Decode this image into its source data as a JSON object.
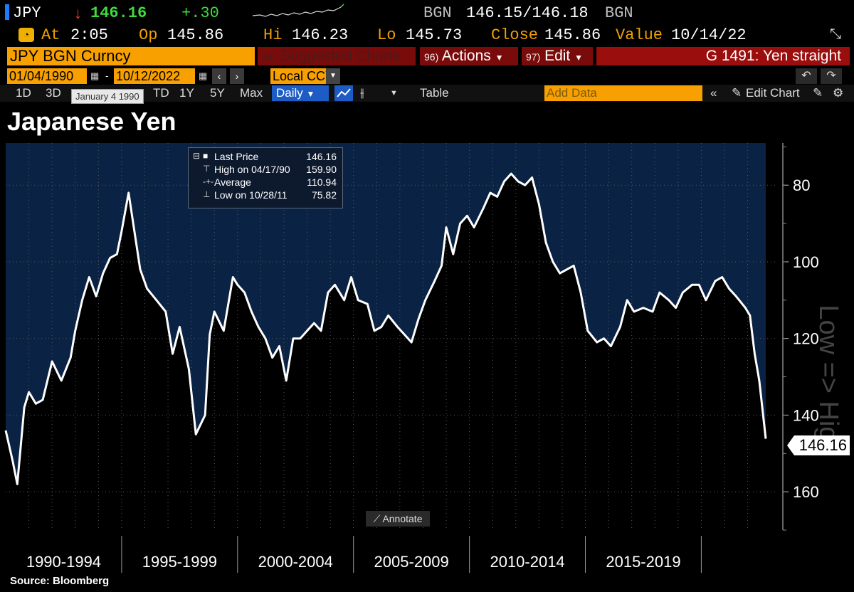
{
  "ticker": {
    "symbol": "JPY",
    "direction_glyph": "↓",
    "last": "146.16",
    "change": "+.30",
    "source1": "BGN",
    "bid_ask": "146.15/146.18",
    "source2": "BGN"
  },
  "quote": {
    "at_label": "At",
    "at_value": "2:05",
    "op_label": "Op",
    "op_value": "145.86",
    "hi_label": "Hi",
    "hi_value": "146.23",
    "lo_label": "Lo",
    "lo_value": "145.73",
    "close_label": "Close",
    "close_value": "145.86",
    "value_label": "Value",
    "value_date": "10/14/22"
  },
  "toolbar": {
    "security": "JPY BGN Curncy",
    "suggested_num": "94)",
    "suggested": "Suggested Charts",
    "actions_num": "96)",
    "actions": "Actions",
    "edit_num": "97)",
    "edit": "Edit",
    "chart_title": "G 1491: Yen straight"
  },
  "dates": {
    "start": "01/04/1990",
    "end": "10/12/2022",
    "currency": "Local CCY",
    "tooltip": "January 4 1990"
  },
  "ranges": {
    "items": [
      "1D",
      "3D",
      "",
      "TD",
      "1Y",
      "5Y",
      "Max"
    ],
    "frequency": "Daily",
    "table": "Table",
    "add_data": "Add Data",
    "edit_chart": "Edit Chart"
  },
  "chart_title": "Japanese Yen",
  "legend": {
    "last_name": "Last Price",
    "last_value": "146.16",
    "high_name": "High on 04/17/90",
    "high_value": "159.90",
    "avg_name": "Average",
    "avg_value": "110.94",
    "low_name": "Low on 10/28/11",
    "low_value": "75.82"
  },
  "annotate_label": "Annotate",
  "last_price_tag": "146.16",
  "source": "Source: Bloomberg",
  "colors": {
    "plot_bg": "#0a2244",
    "line": "#ffffff",
    "accent": "#f7a000",
    "header_red": "#7a0b0b"
  },
  "chart_data": {
    "type": "area",
    "title": "Japanese Yen",
    "ylabel": "Low => High",
    "y_inverted": true,
    "ylim": [
      69,
      170
    ],
    "y_ticks": [
      80,
      100,
      120,
      140,
      160
    ],
    "x_groups": [
      "1990-1994",
      "1995-1999",
      "2000-2004",
      "2005-2009",
      "2010-2014",
      "2015-2019"
    ],
    "x": [
      1990.0,
      1990.3,
      1990.5,
      1990.8,
      1991.0,
      1991.3,
      1991.6,
      1992.0,
      1992.4,
      1992.8,
      1993.0,
      1993.3,
      1993.6,
      1993.9,
      1994.2,
      1994.5,
      1994.8,
      1995.0,
      1995.3,
      1995.5,
      1995.8,
      1996.1,
      1996.5,
      1996.9,
      1997.2,
      1997.5,
      1997.9,
      1998.2,
      1998.6,
      1998.8,
      1999.0,
      1999.4,
      1999.8,
      2000.0,
      2000.3,
      2000.6,
      2000.9,
      2001.2,
      2001.5,
      2001.8,
      2002.1,
      2002.4,
      2002.7,
      2003.0,
      2003.3,
      2003.6,
      2003.9,
      2004.2,
      2004.6,
      2004.9,
      2005.2,
      2005.6,
      2005.9,
      2006.2,
      2006.5,
      2006.9,
      2007.2,
      2007.5,
      2007.8,
      2008.1,
      2008.5,
      2008.8,
      2009.0,
      2009.3,
      2009.6,
      2009.9,
      2010.2,
      2010.6,
      2010.9,
      2011.2,
      2011.5,
      2011.8,
      2012.1,
      2012.4,
      2012.7,
      2013.0,
      2013.3,
      2013.6,
      2013.9,
      2014.2,
      2014.5,
      2014.8,
      2015.1,
      2015.5,
      2015.8,
      2016.1,
      2016.5,
      2016.8,
      2017.1,
      2017.5,
      2017.9,
      2018.2,
      2018.6,
      2018.9,
      2019.2,
      2019.6,
      2019.9,
      2020.2,
      2020.6,
      2020.9,
      2021.2,
      2021.5,
      2021.9,
      2022.1,
      2022.3,
      2022.5,
      2022.78
    ],
    "values": [
      144,
      152,
      158,
      138,
      134,
      137,
      136,
      126,
      131,
      125,
      118,
      110,
      104,
      109,
      103,
      99,
      98,
      92,
      82,
      90,
      102,
      107,
      110,
      113,
      124,
      117,
      128,
      145,
      140,
      119,
      113,
      118,
      104,
      106,
      108,
      113,
      117,
      120,
      125,
      122,
      131,
      120,
      120,
      118,
      116,
      118,
      108,
      106,
      110,
      104,
      110,
      111,
      118,
      117,
      114,
      117,
      119,
      121,
      115,
      110,
      105,
      101,
      91,
      98,
      90,
      88,
      91,
      86,
      82,
      83,
      79,
      77,
      79,
      80,
      78,
      85,
      95,
      100,
      103,
      102,
      101,
      108,
      118,
      121,
      120,
      122,
      117,
      110,
      113,
      112,
      113,
      108,
      110,
      112,
      108,
      106,
      106,
      110,
      105,
      104,
      107,
      109,
      112,
      114,
      124,
      131,
      146.16
    ]
  }
}
